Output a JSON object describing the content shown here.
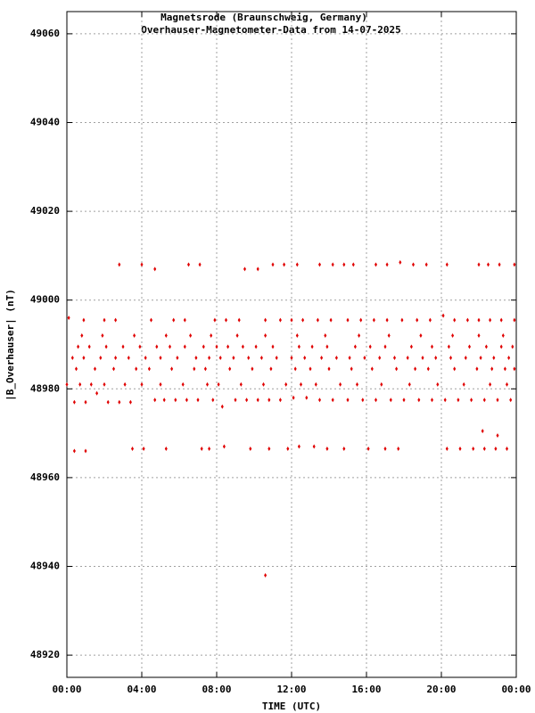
{
  "chart_data": {
    "type": "scatter",
    "title": "Magnetsrode (Braunschweig, Germany)",
    "subtitle": "Overhauser-Magnetometer-Data from 14-07-2025",
    "x_label": "TIME (UTC)",
    "y_label": "|B_Overhauser| (nT)",
    "color": "#e00000",
    "grid": true,
    "xlim": [
      0,
      24
    ],
    "xticks": [
      {
        "value": 0,
        "label": "00:00"
      },
      {
        "value": 4,
        "label": "04:00"
      },
      {
        "value": 8,
        "label": "08:00"
      },
      {
        "value": 12,
        "label": "12:00"
      },
      {
        "value": 16,
        "label": "16:00"
      },
      {
        "value": 20,
        "label": "20:00"
      },
      {
        "value": 24,
        "label": "00:00"
      }
    ],
    "ylim": [
      48915,
      49065
    ],
    "yticks": [
      48920,
      48940,
      48960,
      48980,
      49000,
      49020,
      49040,
      49060
    ],
    "x": [
      2.8,
      4.0,
      4.7,
      6.5,
      7.1,
      9.5,
      10.2,
      11.0,
      11.6,
      12.3,
      13.5,
      14.2,
      14.8,
      15.3,
      16.5,
      17.1,
      17.8,
      18.5,
      19.2,
      20.3,
      22.0,
      22.5,
      23.1,
      23.9,
      0.4,
      1.0,
      3.5,
      4.1,
      5.3,
      7.2,
      7.6,
      8.4,
      9.8,
      10.8,
      11.8,
      12.4,
      13.2,
      13.9,
      14.8,
      16.1,
      17.0,
      17.7,
      20.3,
      21.0,
      21.7,
      22.3,
      22.9,
      23.5,
      10.6,
      22.2,
      23.0,
      0.0,
      0.4,
      1.0,
      1.6,
      2.2,
      2.8,
      3.4,
      4.7,
      5.2,
      5.8,
      6.4,
      7.0,
      7.8,
      8.3,
      9.0,
      9.6,
      10.2,
      10.8,
      11.4,
      12.1,
      12.8,
      13.5,
      14.2,
      15.0,
      15.8,
      16.5,
      17.3,
      18.0,
      18.8,
      19.5,
      20.2,
      20.9,
      21.6,
      22.3,
      23.0,
      23.7,
      0.7,
      1.3,
      2.0,
      3.1,
      4.0,
      5.0,
      6.2,
      7.5,
      8.1,
      9.3,
      10.5,
      11.7,
      12.5,
      13.3,
      14.6,
      15.5,
      16.8,
      18.3,
      19.8,
      21.2,
      22.6,
      23.5,
      0.5,
      1.5,
      2.5,
      3.7,
      4.4,
      5.6,
      6.8,
      7.4,
      8.7,
      9.9,
      10.9,
      12.2,
      13.0,
      14.0,
      15.2,
      16.3,
      17.6,
      18.6,
      19.3,
      20.7,
      21.9,
      22.7,
      23.4,
      23.9,
      0.3,
      0.9,
      1.8,
      2.6,
      3.3,
      4.2,
      5.0,
      5.9,
      6.9,
      7.6,
      8.2,
      8.9,
      9.7,
      10.4,
      11.2,
      12.0,
      12.7,
      13.6,
      14.4,
      15.1,
      15.9,
      16.7,
      17.5,
      18.2,
      19.0,
      19.7,
      20.5,
      21.3,
      22.1,
      22.8,
      23.6,
      0.6,
      1.2,
      2.1,
      3.0,
      3.9,
      4.8,
      5.5,
      6.3,
      7.3,
      8.0,
      8.6,
      9.4,
      10.1,
      11.0,
      12.4,
      13.1,
      13.9,
      15.4,
      16.2,
      17.0,
      18.4,
      19.5,
      20.4,
      21.5,
      22.4,
      23.2,
      23.8,
      0.8,
      1.9,
      3.6,
      5.3,
      6.6,
      7.7,
      9.1,
      10.6,
      12.3,
      13.8,
      15.6,
      17.2,
      18.9,
      20.6,
      22.0,
      23.3,
      0.1,
      0.9,
      2.0,
      2.6,
      4.5,
      5.7,
      6.3,
      7.9,
      8.5,
      9.2,
      10.6,
      11.4,
      12.0,
      12.6,
      13.4,
      14.1,
      15.0,
      15.7,
      16.4,
      17.1,
      17.9,
      18.7,
      19.4,
      20.1,
      20.7,
      21.4,
      22.0,
      22.6,
      23.2,
      23.9
    ],
    "values": [
      49008,
      49008,
      49007,
      49008,
      49008,
      49007,
      49007,
      49008,
      49008,
      49008,
      49008,
      49008,
      49008,
      49008,
      49008,
      49008,
      49008.5,
      49008,
      49008,
      49008,
      49008,
      49008,
      49008,
      49008,
      48966,
      48966,
      48966.5,
      48966.5,
      48966.5,
      48966.5,
      48966.5,
      48967,
      48966.5,
      48966.5,
      48966.5,
      48967,
      48967,
      48966.5,
      48966.5,
      48966.5,
      48966.5,
      48966.5,
      48966.5,
      48966.5,
      48966.5,
      48966.5,
      48966.5,
      48966.5,
      48938,
      48970.5,
      48969.5,
      48981,
      48977,
      48977,
      48979,
      48977,
      48977,
      48977,
      48977.5,
      48977.5,
      48977.5,
      48977.5,
      48977.5,
      48977.5,
      48976,
      48977.5,
      48977.5,
      48977.5,
      48977.5,
      48977.5,
      48978,
      48978,
      48977.5,
      48977.5,
      48977.5,
      48977.5,
      48977.5,
      48977.5,
      48977.5,
      48977.5,
      48977.5,
      48977.5,
      48977.5,
      48977.5,
      48977.5,
      48977.5,
      48977.5,
      48981,
      48981,
      48981,
      48981,
      48981,
      48981,
      48981,
      48981,
      48981,
      48981,
      48981,
      48981,
      48981,
      48981,
      48981,
      48981,
      48981,
      48981,
      48981,
      48981,
      48981,
      48981,
      48984.5,
      48984.5,
      48984.5,
      48984.5,
      48984.5,
      48984.5,
      48984.5,
      48984.5,
      48984.5,
      48984.5,
      48984.5,
      48984.5,
      48984.5,
      48984.5,
      48984.5,
      48984.5,
      48984.5,
      48984.5,
      48984.5,
      48984.5,
      48984.5,
      48984.5,
      48984.5,
      48984.5,
      48987,
      48987,
      48987,
      48987,
      48987,
      48987,
      48987,
      48987,
      48987,
      48987,
      48987,
      48987,
      48987,
      48987,
      48987,
      48987,
      48987,
      48987,
      48987,
      48987,
      48987,
      48987,
      48987,
      48987,
      48987,
      48987,
      48987,
      48987,
      48987,
      48987,
      48987,
      48989.5,
      48989.5,
      48989.5,
      48989.5,
      48989.5,
      48989.5,
      48989.5,
      48989.5,
      48989.5,
      48989.5,
      48989.5,
      48989.5,
      48989.5,
      48989.5,
      48989.5,
      48989.5,
      48989.5,
      48989.5,
      48989.5,
      48989.5,
      48989.5,
      48989.5,
      48989.5,
      48989.5,
      48989.5,
      48989.5,
      48989.5,
      48992,
      48992,
      48992,
      48992,
      48992,
      48992,
      48992,
      48992,
      48992,
      48992,
      48992,
      48992,
      48992,
      48992,
      48992,
      48992,
      48996,
      48995.5,
      48995.5,
      48995.5,
      48995.5,
      48995.5,
      48995.5,
      48995.5,
      48995.5,
      48995.5,
      48995.5,
      48995.5,
      48995.5,
      48995.5,
      48995.5,
      48995.5,
      48995.5,
      48995.5,
      48995.5,
      48995.5,
      48995.5,
      48995.5,
      48995.5,
      48996.5,
      48995.5,
      48995.5,
      48995.5,
      48995.5,
      48995.5,
      48995.5
    ]
  }
}
